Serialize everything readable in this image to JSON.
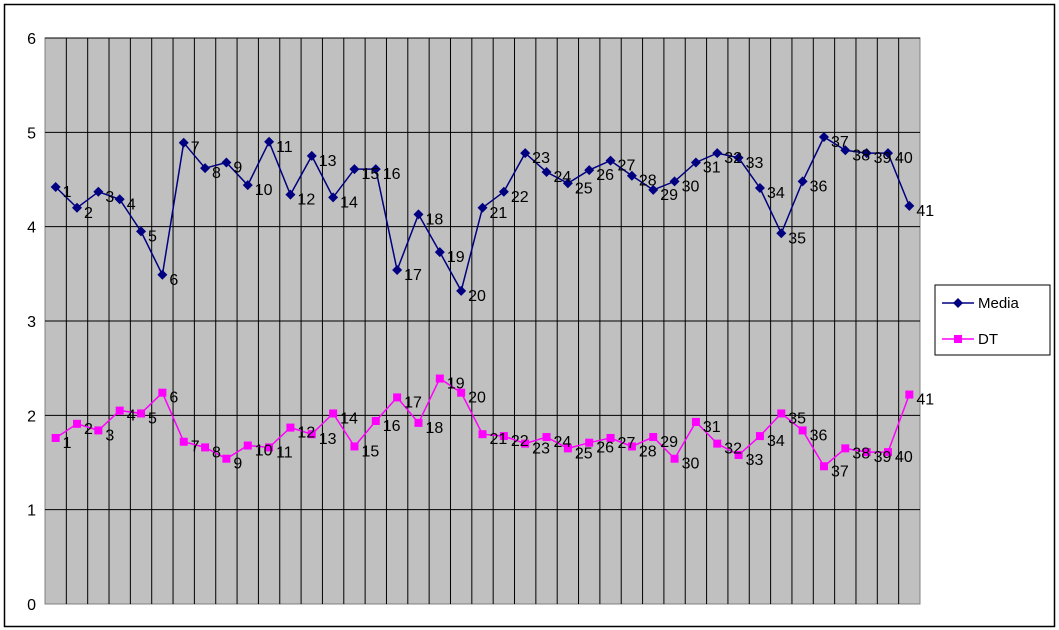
{
  "chart_data": {
    "type": "line",
    "title": "",
    "xlabel": "",
    "ylabel": "",
    "ylim": [
      0,
      6
    ],
    "y_ticks": [
      "0",
      "1",
      "2",
      "3",
      "4",
      "5",
      "6"
    ],
    "grid": "both",
    "plot_background": "#c0c0c0",
    "legend_position": "right",
    "x": [
      1,
      2,
      3,
      4,
      5,
      6,
      7,
      8,
      9,
      10,
      11,
      12,
      13,
      14,
      15,
      16,
      17,
      18,
      19,
      20,
      21,
      22,
      23,
      24,
      25,
      26,
      27,
      28,
      29,
      30,
      31,
      32,
      33,
      34,
      35,
      36,
      37,
      38,
      39,
      40,
      41
    ],
    "series": [
      {
        "name": "Media",
        "color": "#000080",
        "marker": "diamond",
        "values": [
          4.42,
          4.2,
          4.37,
          4.29,
          3.95,
          3.49,
          4.89,
          4.62,
          4.68,
          4.44,
          4.9,
          4.34,
          4.75,
          4.31,
          4.61,
          4.61,
          3.54,
          4.13,
          3.73,
          3.32,
          4.2,
          4.37,
          4.78,
          4.58,
          4.46,
          4.6,
          4.7,
          4.54,
          4.39,
          4.48,
          4.68,
          4.78,
          4.73,
          4.41,
          3.93,
          4.48,
          4.95,
          4.81,
          4.78,
          4.78,
          4.22
        ]
      },
      {
        "name": "DT",
        "color": "#ff00ff",
        "marker": "square",
        "values": [
          1.76,
          1.91,
          1.84,
          2.05,
          2.02,
          2.24,
          1.72,
          1.66,
          1.54,
          1.68,
          1.66,
          1.87,
          1.8,
          2.02,
          1.67,
          1.94,
          2.19,
          1.92,
          2.39,
          2.24,
          1.8,
          1.78,
          1.7,
          1.77,
          1.65,
          1.71,
          1.76,
          1.67,
          1.77,
          1.54,
          1.93,
          1.7,
          1.58,
          1.78,
          2.02,
          1.84,
          1.46,
          1.65,
          1.61,
          1.61,
          2.22
        ]
      }
    ],
    "data_labels": [
      "1",
      "2",
      "3",
      "4",
      "5",
      "6",
      "7",
      "8",
      "9",
      "10",
      "11",
      "12",
      "13",
      "14",
      "15",
      "16",
      "17",
      "18",
      "19",
      "20",
      "21",
      "22",
      "23",
      "24",
      "25",
      "26",
      "27",
      "28",
      "29",
      "30",
      "31",
      "32",
      "33",
      "34",
      "35",
      "36",
      "37",
      "38",
      "39",
      "40",
      "41"
    ]
  }
}
